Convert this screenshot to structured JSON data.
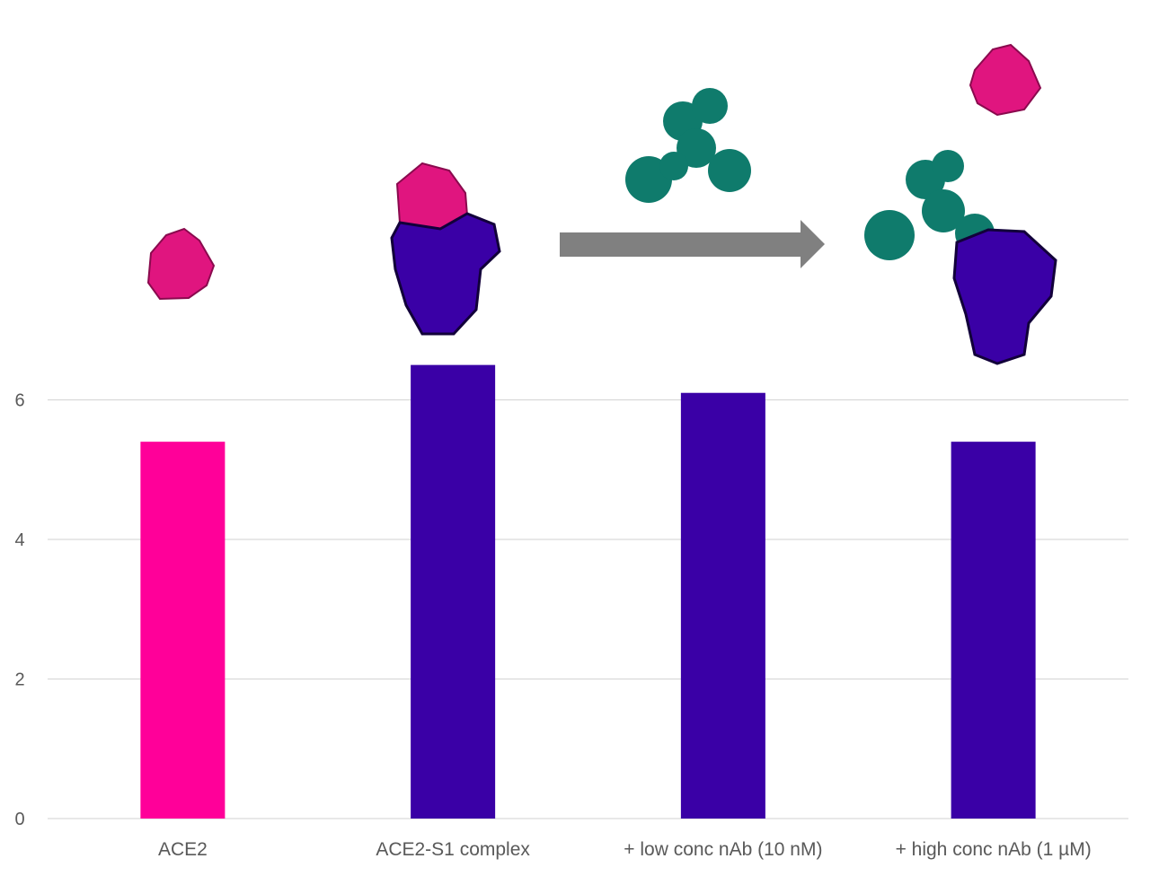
{
  "chart_data": {
    "type": "bar",
    "title": "",
    "xlabel": "",
    "ylabel": "",
    "categories": [
      "ACE2",
      "ACE2-S1 complex",
      "+ low conc nAb (10 nM)",
      "+ high conc nAb (1 µM)"
    ],
    "values": [
      5.4,
      6.5,
      6.1,
      5.4
    ],
    "bar_colors": [
      "#FF0099",
      "#3A00A6",
      "#3A00A6",
      "#3A00A6"
    ],
    "ylim": [
      0,
      6
    ],
    "yticks": [
      "0",
      "2",
      "4",
      "6"
    ],
    "grid": true,
    "legend": "none",
    "annotations": [
      {
        "type": "protein-illustration",
        "name": "ACE2",
        "above": "ACE2",
        "color": "#E0157F"
      },
      {
        "type": "protein-illustration",
        "name": "ACE2-S1 complex",
        "above": "ACE2-S1 complex",
        "colors": [
          "#E0157F",
          "#3A00A6"
        ]
      },
      {
        "type": "arrow-right",
        "color": "#808080"
      },
      {
        "type": "protein-illustration",
        "name": "antibody",
        "above": "+ low conc nAb (10 nM)",
        "color": "#0F7B6C"
      },
      {
        "type": "protein-illustration",
        "name": "antibody-S1 complex with free ACE2",
        "above": "+ high conc nAb (1 µM)",
        "colors": [
          "#0F7B6C",
          "#3A00A6",
          "#E0157F"
        ]
      }
    ]
  }
}
